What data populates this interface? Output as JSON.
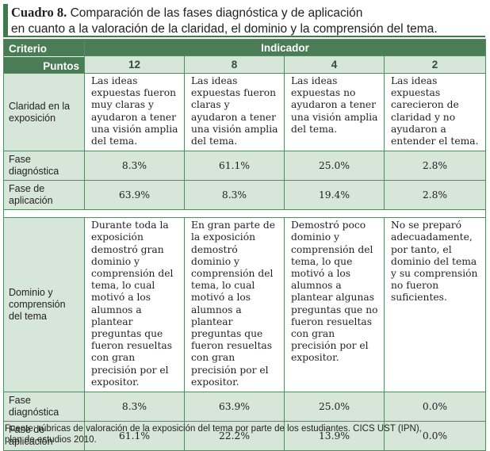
{
  "title": {
    "label": "Cuadro 8.",
    "line1": "Comparación de las fases diagnóstica y de aplicación",
    "line2": "en cuanto a la valoración de la claridad, el dominio y la comprensión del tema."
  },
  "header": {
    "criterio": "Criterio",
    "puntos": "Puntos",
    "indicador": "Indicador",
    "points": [
      "12",
      "8",
      "4",
      "2"
    ]
  },
  "sections": [
    {
      "criterion": "Claridad en la exposición",
      "descriptions": [
        "Las ideas expuestas fueron muy claras y ayudaron a tener una visión amplia del tema.",
        "Las ideas expuestas fueron claras y ayudaron a tener una visión amplia del tema.",
        "Las ideas expuestas no ayudaron a tener una visión amplia del tema.",
        "Las ideas expuestas carecieron de claridad y no ayudaron a entender el tema."
      ],
      "phases": [
        {
          "label": "Fase diagnóstica",
          "values": [
            "8.3%",
            "61.1%",
            "25.0%",
            "2.8%"
          ]
        },
        {
          "label": "Fase de aplicación",
          "values": [
            "63.9%",
            "8.3%",
            "19.4%",
            "2.8%"
          ]
        }
      ]
    },
    {
      "criterion": "Dominio y comprensión del tema",
      "descriptions": [
        "Durante toda la exposición demostró gran dominio y comprensión del tema, lo cual motivó a los alumnos a plantear preguntas que fueron resueltas con gran precisión por el expositor.",
        "En gran parte de la exposición demostró dominio y comprensión del tema, lo cual motivó a los alumnos a plantear preguntas que fueron resueltas con gran precisión por el expositor.",
        "Demostró poco dominio y comprensión del tema, lo que motivó a los alumnos a plantear algunas preguntas que no fueron resueltas con gran precisión por el expositor.",
        "No se preparó adecuadamente, por tanto, el dominio del tema y su comprensión no fueron suficientes."
      ],
      "phases": [
        {
          "label": "Fase diagnóstica",
          "values": [
            "8.3%",
            "63.9%",
            "25.0%",
            "0.0%"
          ]
        },
        {
          "label": "Fase de aplicación",
          "values": [
            "61.1%",
            "22.2%",
            "13.9%",
            "0.0%"
          ]
        }
      ]
    }
  ],
  "source": {
    "line1": "Fuente: rúbricas de valoración de la exposición del tema por parte de los estudiantes. CICS UST (IPN),",
    "line2": "plan de estudios 2010."
  }
}
